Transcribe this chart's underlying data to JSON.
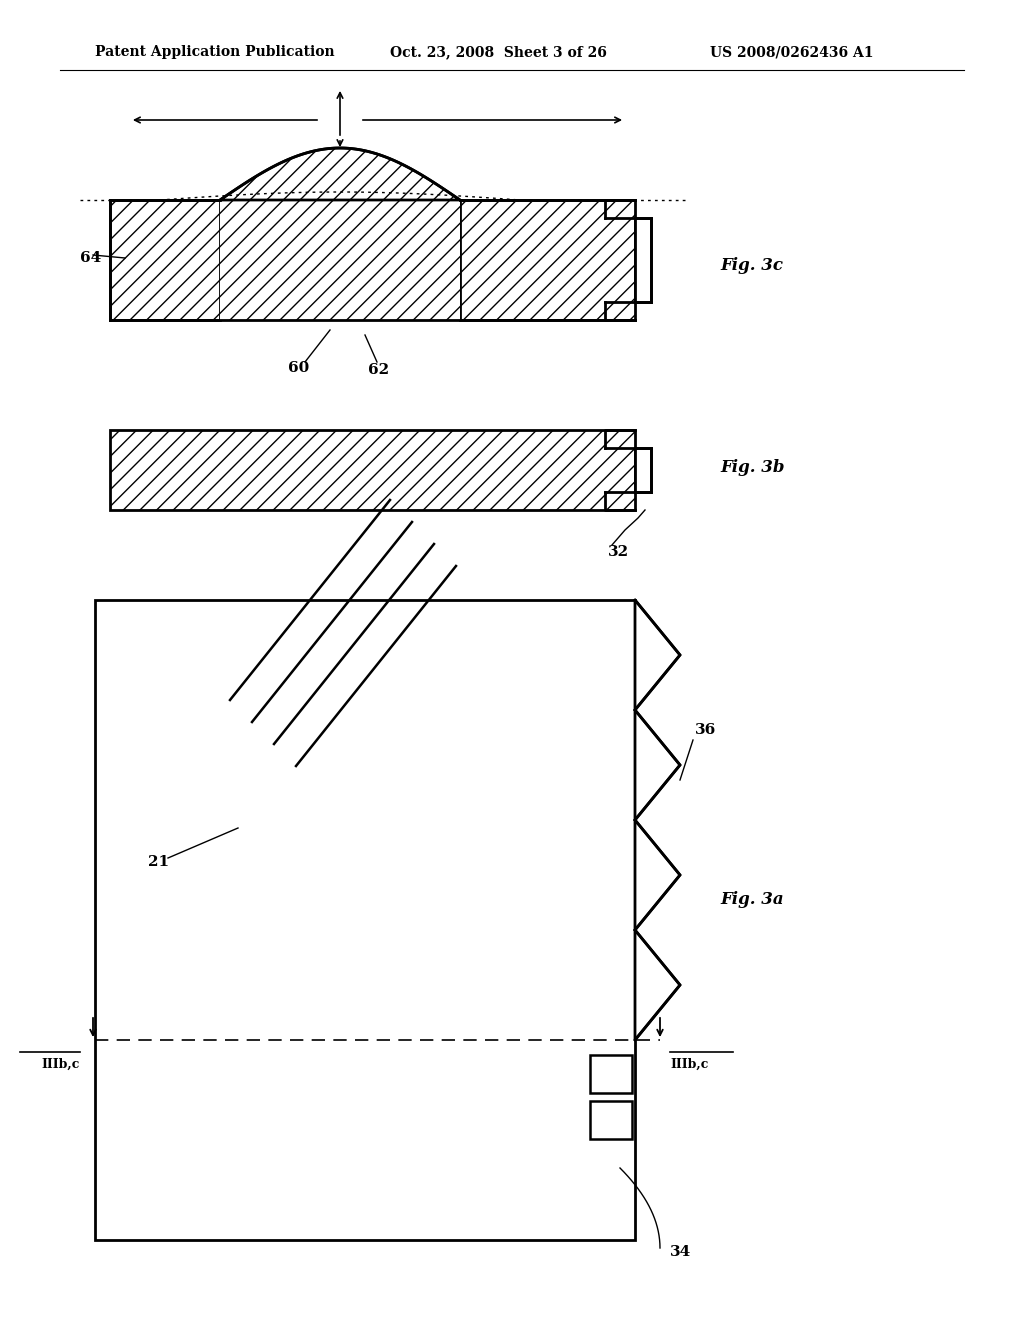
{
  "bg_color": "#ffffff",
  "header_left": "Patent Application Publication",
  "header_mid": "Oct. 23, 2008  Sheet 3 of 26",
  "header_right": "US 2008/0262436 A1",
  "fig3a_label": "Fig. 3a",
  "fig3b_label": "Fig. 3b",
  "fig3c_label": "Fig. 3c",
  "label_21": "21",
  "label_36": "36",
  "label_34": "34",
  "label_32": "32",
  "label_60": "60",
  "label_62": "62",
  "label_64": "64",
  "label_IIIbc_left": "IIIb,c",
  "label_IIIbc_right": "IIIb,c"
}
